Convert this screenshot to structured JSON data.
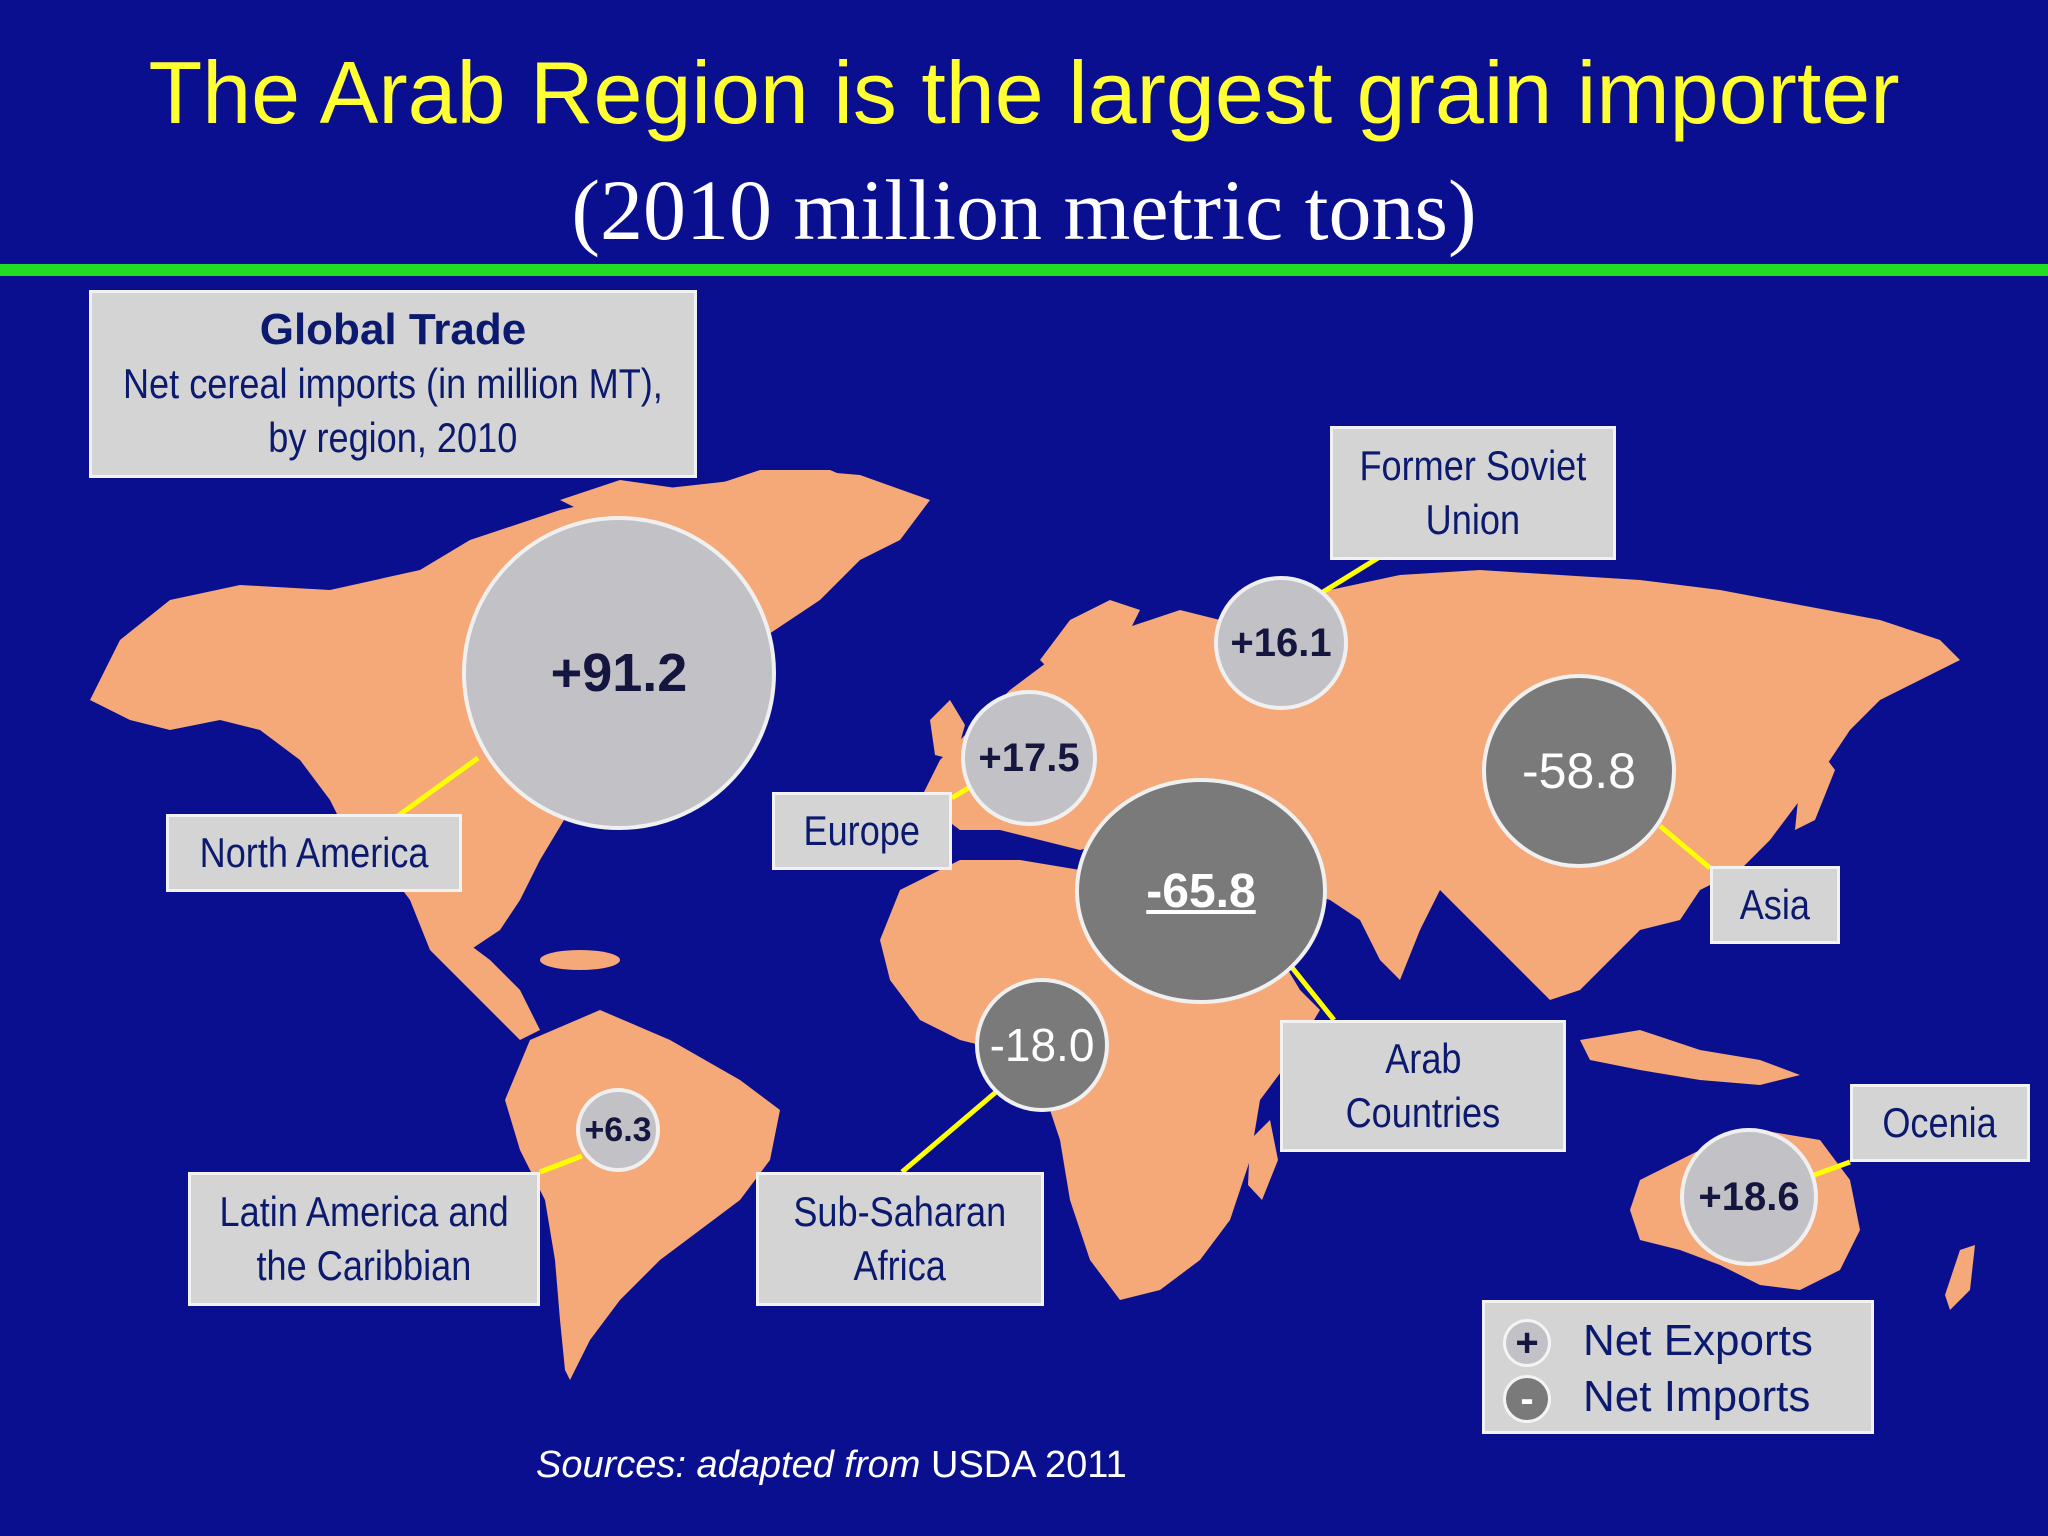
{
  "title": "The Arab Region is the largest grain importer",
  "subtitle": "(2010 million metric tons)",
  "colors": {
    "background": "#0a0f8f",
    "title": "#ffff33",
    "rule": "#22dd22",
    "land": "#f5a878",
    "connector": "#ffff00",
    "net_export_bubble": "#c2c2c6",
    "net_import_bubble": "#7a7a7a"
  },
  "info_box": {
    "heading": "Global Trade",
    "line1": "Net cereal imports (in million MT),",
    "line2": "by region, 2010"
  },
  "regions": [
    {
      "id": "north-america",
      "label_lines": [
        "North America"
      ],
      "value": "+91.2",
      "type": "net-exports"
    },
    {
      "id": "former-soviet-union",
      "label_lines": [
        "Former Soviet",
        "Union"
      ],
      "value": "+16.1",
      "type": "net-exports"
    },
    {
      "id": "europe",
      "label_lines": [
        "Europe"
      ],
      "value": "+17.5",
      "type": "net-exports"
    },
    {
      "id": "arab-countries",
      "label_lines": [
        "Arab",
        "Countries"
      ],
      "value": "-65.8",
      "type": "net-imports"
    },
    {
      "id": "asia",
      "label_lines": [
        "Asia"
      ],
      "value": "-58.8",
      "type": "net-imports"
    },
    {
      "id": "sub-saharan-africa",
      "label_lines": [
        "Sub-Saharan",
        "Africa"
      ],
      "value": "-18.0",
      "type": "net-imports"
    },
    {
      "id": "latin-america",
      "label_lines": [
        "Latin America and",
        "the Caribbian"
      ],
      "value": "+6.3",
      "type": "net-exports"
    },
    {
      "id": "ocenia",
      "label_lines": [
        "Ocenia"
      ],
      "value": "+18.6",
      "type": "net-exports"
    }
  ],
  "legend": {
    "plus_symbol": "+",
    "minus_symbol": "-",
    "exports_label": "Net Exports",
    "imports_label": "Net Imports"
  },
  "sources": {
    "italic_part": "Sources: adapted from",
    "plain_part": "USDA 2011"
  }
}
